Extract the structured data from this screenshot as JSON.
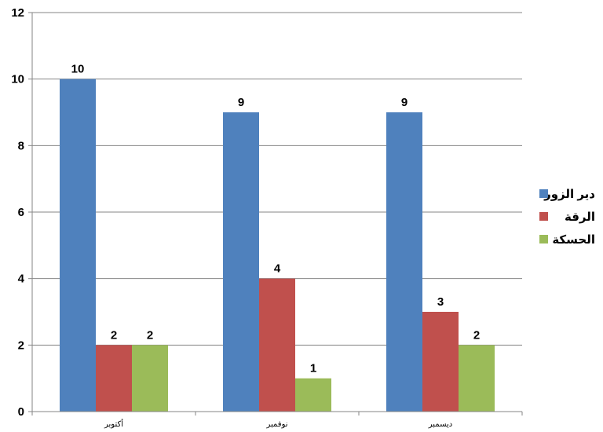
{
  "chart_data": {
    "type": "bar",
    "categories": [
      "أكتوبر",
      "نوفمبر",
      "ديسمبر"
    ],
    "series": [
      {
        "name": "دير الزور",
        "values": [
          10,
          9,
          9
        ],
        "color": "#4F81BD"
      },
      {
        "name": "الرقة",
        "values": [
          2,
          4,
          3
        ],
        "color": "#C0504D"
      },
      {
        "name": "الحسكة",
        "values": [
          2,
          1,
          2
        ],
        "color": "#9BBB59"
      }
    ],
    "ylim": [
      0,
      12
    ],
    "yticks": [
      0,
      2,
      4,
      6,
      8,
      10,
      12
    ],
    "grid": true,
    "legend": "right",
    "data_labels": true
  }
}
